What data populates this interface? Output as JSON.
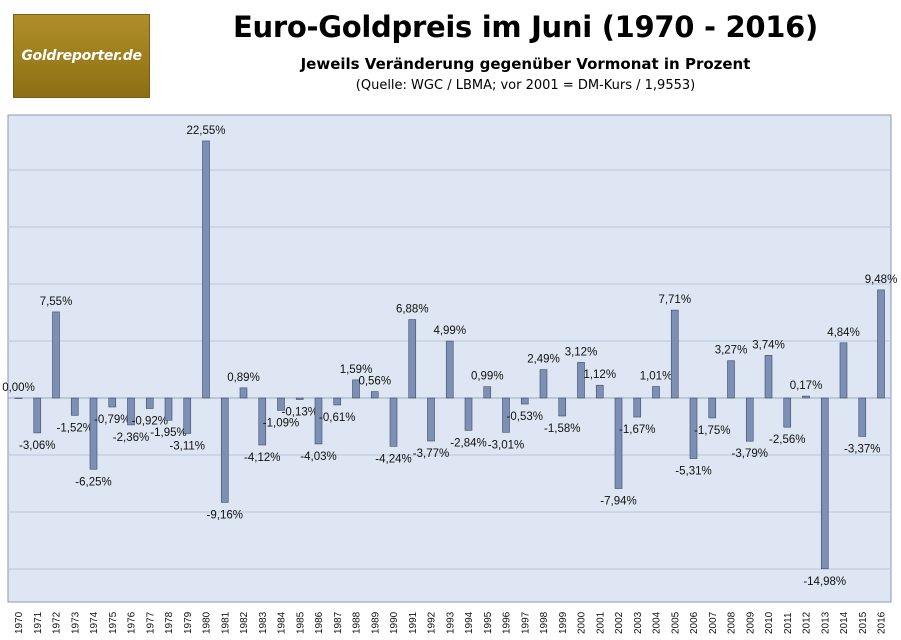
{
  "header": {
    "logo_text": "Goldreporter.de",
    "title": "Euro-Goldpreis im Juni (1970 - 2016)",
    "subtitle": "Jeweils Veränderung gegenüber Vormonat in Prozent",
    "source": "(Quelle: WGC / LBMA; vor 2001 = DM-Kurs / 1,9553)"
  },
  "colors": {
    "plot_background": "#dde6f2",
    "gridline": "#b9c7da",
    "bar": "#7d8fb3",
    "bar_edge": "#3c4b6b"
  },
  "chart_data": {
    "type": "bar",
    "title": "Euro-Goldpreis im Juni (1970 - 2016)",
    "subtitle": "Jeweils Veränderung gegenüber Vormonat in Prozent",
    "xlabel": "",
    "ylabel": "",
    "grid": true,
    "y_gridlines": [
      25,
      20,
      15,
      10,
      5,
      0,
      -5,
      -10,
      -15
    ],
    "ylim": [
      -17.5,
      25
    ],
    "categories": [
      "1970",
      "1971",
      "1972",
      "1973",
      "1974",
      "1975",
      "1976",
      "1977",
      "1978",
      "1979",
      "1980",
      "1981",
      "1982",
      "1983",
      "1984",
      "1985",
      "1986",
      "1987",
      "1988",
      "1989",
      "1990",
      "1991",
      "1992",
      "1993",
      "1994",
      "1995",
      "1996",
      "1997",
      "1998",
      "1999",
      "2000",
      "2001",
      "2002",
      "2003",
      "2004",
      "2005",
      "2006",
      "2007",
      "2008",
      "2009",
      "2010",
      "2011",
      "2012",
      "2013",
      "2014",
      "2015",
      "2016"
    ],
    "values": [
      0.0,
      -3.06,
      7.55,
      -1.52,
      -6.25,
      -0.79,
      -2.36,
      -0.92,
      -1.95,
      -3.11,
      22.55,
      -9.16,
      0.89,
      -4.12,
      -1.09,
      -0.13,
      -4.03,
      -0.61,
      1.59,
      0.56,
      -4.24,
      6.88,
      -3.77,
      4.99,
      -2.84,
      0.99,
      -3.01,
      -0.53,
      2.49,
      -1.58,
      3.12,
      1.12,
      -7.94,
      -1.67,
      1.01,
      7.71,
      -5.31,
      -1.75,
      3.27,
      -3.79,
      3.74,
      -2.56,
      0.17,
      -14.98,
      4.84,
      -3.37,
      9.48
    ],
    "labels": [
      "0,00%",
      "-3,06%",
      "7,55%",
      "-1,52%",
      "-6,25%",
      "-0,79%",
      "-2,36%",
      "-0,92%",
      "-1,95%",
      "-3,11%",
      "22,55%",
      "-9,16%",
      "0,89%",
      "-4,12%",
      "-1,09%",
      "-0,13%",
      "-4,03%",
      "-0,61%",
      "1,59%",
      "0,56%",
      "-4,24%",
      "6,88%",
      "-3,77%",
      "4,99%",
      "-2,84%",
      "0,99%",
      "-3,01%",
      "-0,53%",
      "2,49%",
      "-1,58%",
      "3,12%",
      "1,12%",
      "-7,94%",
      "-1,67%",
      "1,01%",
      "7,71%",
      "-5,31%",
      "-1,75%",
      "3,27%",
      "-3,79%",
      "3,74%",
      "-2,56%",
      "0,17%",
      "-14,98%",
      "4,84%",
      "-3,37%",
      "9,48%"
    ]
  }
}
